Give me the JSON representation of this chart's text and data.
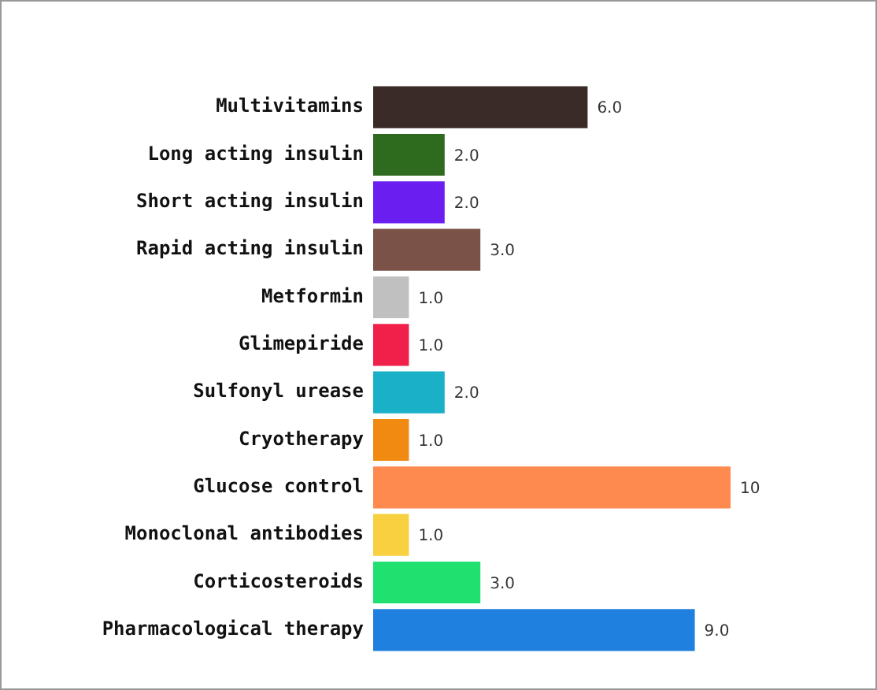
{
  "chart_data": {
    "type": "bar",
    "orientation": "horizontal",
    "categories": [
      "Multivitamins",
      "Long acting insulin",
      "Short acting insulin",
      "Rapid acting insulin",
      "Metformin",
      "Glimepiride",
      "Sulfonyl urease",
      "Cryotherapy",
      "Glucose control",
      "Monoclonal antibodies",
      "Corticosteroids",
      "Pharmacological therapy"
    ],
    "values": [
      6,
      2,
      2,
      3,
      1,
      1,
      2,
      1,
      10,
      1,
      3,
      9
    ],
    "value_labels": [
      "6.0",
      "2.0",
      "2.0",
      "3.0",
      "1.0",
      "1.0",
      "2.0",
      "1.0",
      "10",
      "1.0",
      "3.0",
      "9.0"
    ],
    "colors": [
      "#3a2a28",
      "#2e6b1e",
      "#6a1ef0",
      "#7a5248",
      "#c0c0c0",
      "#f0204a",
      "#1ab0c8",
      "#f08a10",
      "#ff8a50",
      "#f8d040",
      "#20e070",
      "#2080e0"
    ],
    "xlim": [
      0,
      10
    ],
    "tick_labels": "y",
    "grid": false,
    "legend": false
  }
}
